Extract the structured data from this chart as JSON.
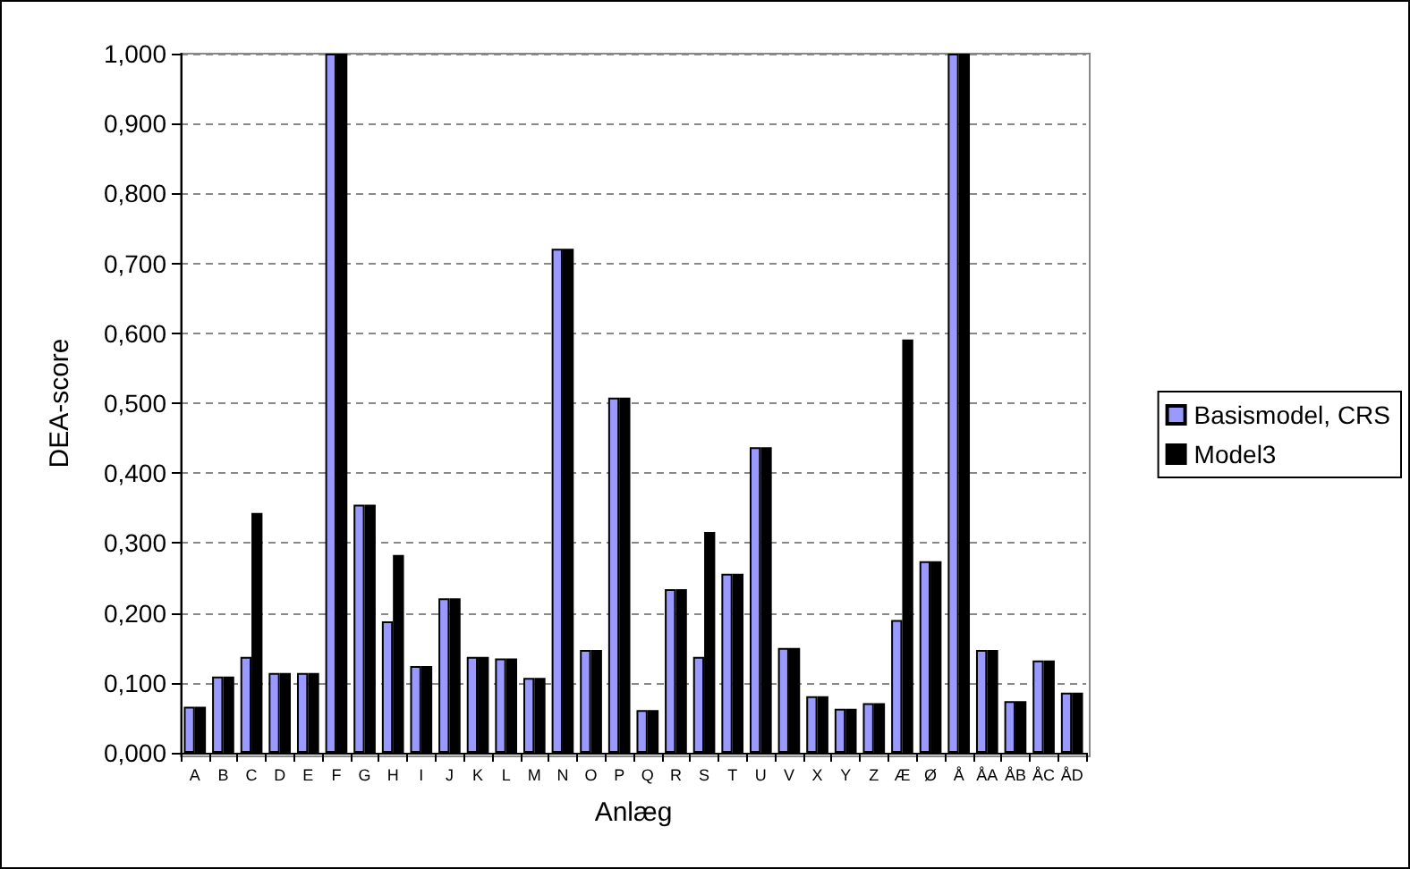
{
  "chart_data": {
    "type": "bar",
    "xlabel": "Anlæg",
    "ylabel": "DEA-score",
    "categories": [
      "A",
      "B",
      "C",
      "D",
      "E",
      "F",
      "G",
      "H",
      "I",
      "J",
      "K",
      "L",
      "M",
      "N",
      "O",
      "P",
      "Q",
      "R",
      "S",
      "T",
      "U",
      "V",
      "X",
      "Y",
      "Z",
      "Æ",
      "Ø",
      "Å",
      "ÅA",
      "ÅB",
      "ÅC",
      "ÅD"
    ],
    "series": [
      {
        "name": "Basismodel, CRS",
        "color": "#9999ff",
        "values": [
          0.066,
          0.109,
          0.137,
          0.114,
          0.114,
          1.0,
          0.355,
          0.188,
          0.124,
          0.221,
          0.137,
          0.135,
          0.107,
          0.721,
          0.147,
          0.508,
          0.061,
          0.234,
          0.137,
          0.256,
          0.437,
          0.15,
          0.081,
          0.063,
          0.071,
          0.19,
          0.274,
          1.0,
          0.147,
          0.074,
          0.132,
          0.086
        ]
      },
      {
        "name": "Model3",
        "color": "#000000",
        "values": [
          0.066,
          0.109,
          0.343,
          0.114,
          0.114,
          1.0,
          0.355,
          0.283,
          0.124,
          0.221,
          0.137,
          0.135,
          0.107,
          0.721,
          0.147,
          0.508,
          0.061,
          0.234,
          0.316,
          0.256,
          0.437,
          0.15,
          0.081,
          0.063,
          0.071,
          0.591,
          0.274,
          1.0,
          0.147,
          0.074,
          0.132,
          0.086
        ]
      }
    ],
    "ylim": [
      0,
      1
    ],
    "yticks": [
      {
        "value": 0,
        "label": "0,000"
      },
      {
        "value": 0.1,
        "label": "0,100"
      },
      {
        "value": 0.2,
        "label": "0,200"
      },
      {
        "value": 0.3,
        "label": "0,300"
      },
      {
        "value": 0.4,
        "label": "0,400"
      },
      {
        "value": 0.5,
        "label": "0,500"
      },
      {
        "value": 0.6,
        "label": "0,600"
      },
      {
        "value": 0.7,
        "label": "0,700"
      },
      {
        "value": 0.8,
        "label": "0,800"
      },
      {
        "value": 0.9,
        "label": "0,900"
      },
      {
        "value": 1,
        "label": "1,000"
      }
    ],
    "grid": "y",
    "legend": "right"
  }
}
